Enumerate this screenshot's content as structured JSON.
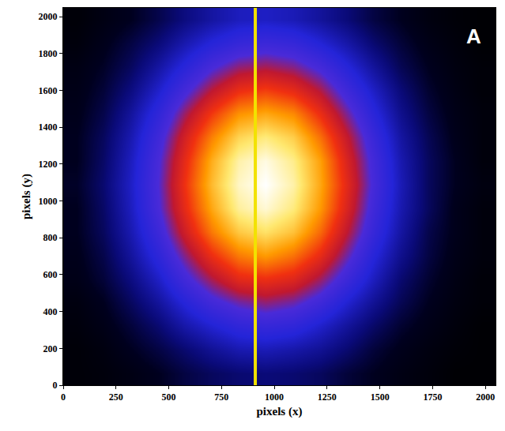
{
  "chart_data": {
    "type": "heatmap",
    "x_label": "pixels (x)",
    "y_label": "pixels (y)",
    "panel": "A",
    "x": [
      64,
      192,
      320,
      448,
      576,
      704,
      832,
      960,
      1088,
      1216,
      1344,
      1472,
      1600,
      1728,
      1856,
      1984
    ],
    "y": [
      64,
      192,
      320,
      448,
      576,
      704,
      832,
      960,
      1088,
      1216,
      1344,
      1472,
      1600,
      1728,
      1856,
      1984
    ],
    "z": [
      [
        2,
        3,
        5,
        8,
        12,
        15,
        17,
        18,
        17,
        15,
        11,
        8,
        5,
        3,
        1,
        1
      ],
      [
        2,
        4,
        8,
        12,
        17,
        22,
        26,
        27,
        25,
        22,
        17,
        11,
        7,
        4,
        2,
        1
      ],
      [
        3,
        6,
        11,
        17,
        25,
        31,
        36,
        38,
        36,
        30,
        23,
        16,
        10,
        6,
        3,
        1
      ],
      [
        4,
        8,
        15,
        23,
        33,
        42,
        48,
        51,
        48,
        41,
        31,
        22,
        14,
        8,
        4,
        2
      ],
      [
        6,
        11,
        19,
        29,
        42,
        53,
        62,
        64,
        61,
        52,
        40,
        28,
        17,
        10,
        5,
        2
      ],
      [
        7,
        13,
        23,
        35,
        50,
        64,
        74,
        78,
        73,
        63,
        48,
        33,
        21,
        12,
        6,
        3
      ],
      [
        8,
        15,
        26,
        40,
        58,
        74,
        85,
        89,
        84,
        72,
        55,
        38,
        24,
        13,
        7,
        3
      ],
      [
        8,
        16,
        28,
        44,
        63,
        80,
        93,
        97,
        91,
        78,
        60,
        41,
        26,
        15,
        7,
        3
      ],
      [
        9,
        17,
        29,
        45,
        65,
        83,
        96,
        100,
        94,
        80,
        62,
        43,
        27,
        15,
        8,
        4
      ],
      [
        8,
        16,
        28,
        44,
        63,
        81,
        94,
        98,
        92,
        79,
        60,
        42,
        26,
        15,
        8,
        3
      ],
      [
        8,
        15,
        26,
        41,
        59,
        75,
        87,
        91,
        86,
        73,
        56,
        39,
        24,
        14,
        7,
        3
      ],
      [
        7,
        13,
        23,
        36,
        52,
        66,
        77,
        80,
        76,
        64,
        49,
        34,
        21,
        12,
        6,
        3
      ],
      [
        6,
        11,
        19,
        30,
        43,
        55,
        64,
        67,
        63,
        54,
        41,
        29,
        18,
        10,
        5,
        2
      ],
      [
        5,
        9,
        15,
        24,
        34,
        44,
        51,
        53,
        50,
        43,
        33,
        23,
        14,
        8,
        4,
        2
      ],
      [
        3,
        7,
        12,
        18,
        26,
        33,
        38,
        40,
        38,
        32,
        25,
        17,
        11,
        6,
        3,
        1
      ],
      [
        2,
        5,
        8,
        13,
        19,
        24,
        28,
        29,
        27,
        23,
        18,
        12,
        8,
        4,
        2,
        1
      ]
    ],
    "zlim": [
      0,
      100
    ],
    "xlim": [
      0,
      2048
    ],
    "ylim": [
      0,
      2048
    ],
    "xticks": [
      0,
      250,
      500,
      750,
      1000,
      1250,
      1500,
      1750,
      2000
    ],
    "yticks": [
      0,
      200,
      400,
      600,
      800,
      1000,
      1200,
      1400,
      1600,
      1800,
      2000
    ],
    "vline": {
      "x": 910,
      "color": "#f2e200"
    }
  }
}
